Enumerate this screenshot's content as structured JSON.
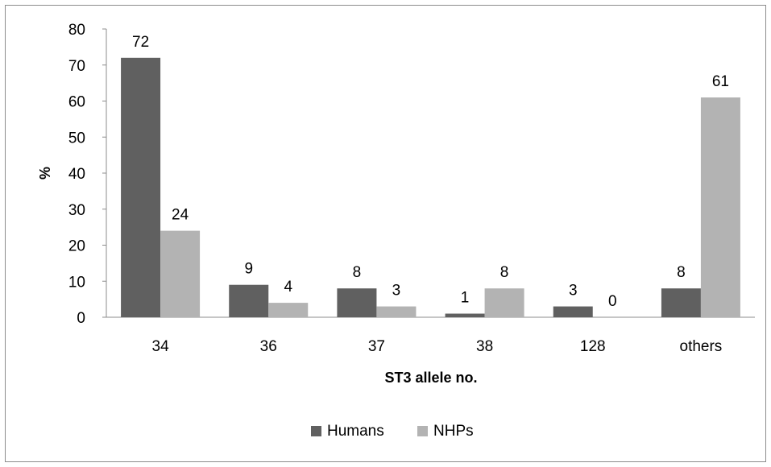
{
  "chart_data": {
    "type": "bar",
    "categories": [
      "34",
      "36",
      "37",
      "38",
      "128",
      "others"
    ],
    "series": [
      {
        "name": "Humans",
        "values": [
          72,
          9,
          8,
          1,
          3,
          8
        ],
        "color": "#606060"
      },
      {
        "name": "NHPs",
        "values": [
          24,
          4,
          3,
          8,
          0,
          61
        ],
        "color": "#b3b3b3"
      }
    ],
    "xlabel": "ST3 allele no.",
    "ylabel": "%",
    "ylim": [
      0,
      80
    ],
    "yticks": [
      0,
      10,
      20,
      30,
      40,
      50,
      60,
      70,
      80
    ],
    "grid": false,
    "legend": "bottom"
  }
}
